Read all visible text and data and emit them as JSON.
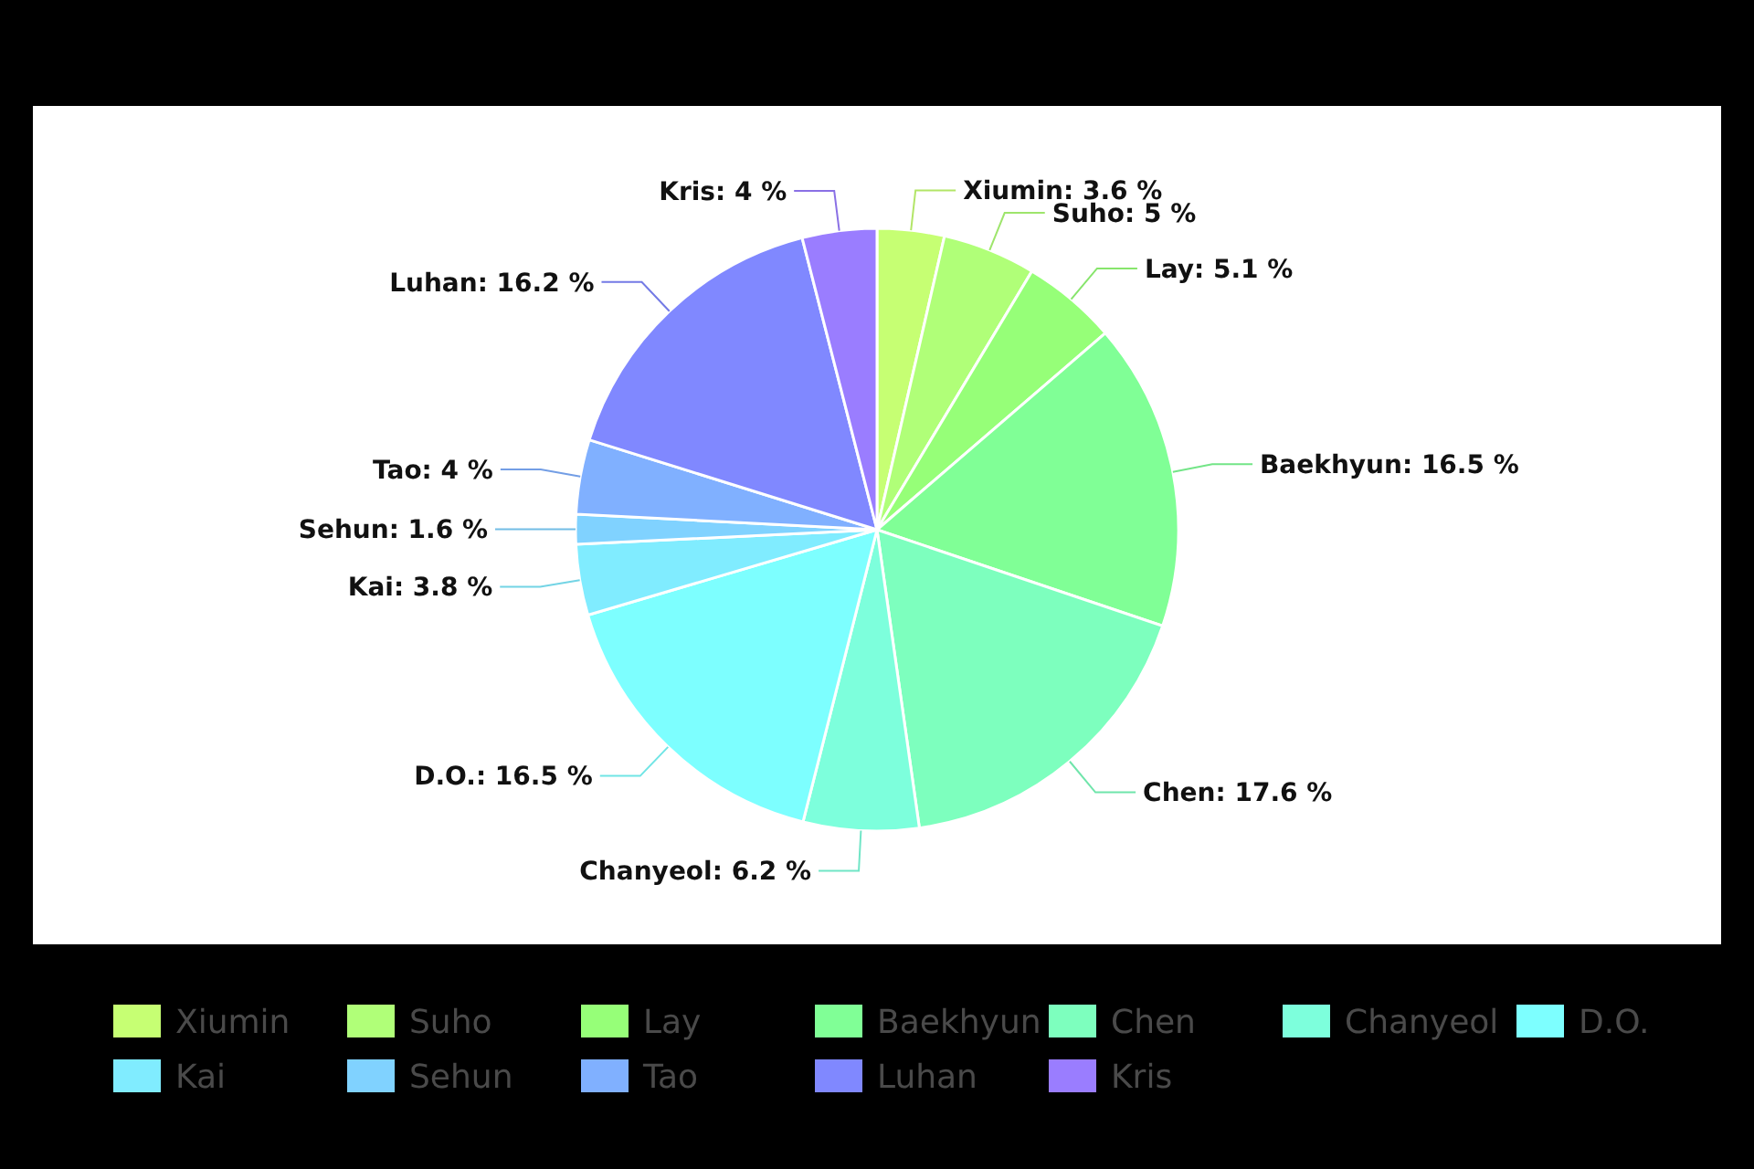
{
  "chart_data": {
    "type": "pie",
    "categories": [
      "Xiumin",
      "Suho",
      "Lay",
      "Baekhyun",
      "Chen",
      "Chanyeol",
      "D.O.",
      "Kai",
      "Sehun",
      "Tao",
      "Luhan",
      "Kris"
    ],
    "values": [
      3.6,
      5,
      5.1,
      16.5,
      17.6,
      6.2,
      16.5,
      3.8,
      1.6,
      4,
      16.2,
      4
    ],
    "colors": [
      "#c6ff73",
      "#b0ff78",
      "#96ff78",
      "#80ff96",
      "#7dffbe",
      "#7dffdc",
      "#7dffff",
      "#80ecff",
      "#80d2ff",
      "#80b0ff",
      "#8088ff",
      "#9a7dff"
    ],
    "value_labels": [
      "Xiumin: 3.6 %",
      "Suho: 5 %",
      "Lay: 5.1 %",
      "Baekhyun: 16.5 %",
      "Chen: 17.6 %",
      "Chanyeol: 6.2 %",
      "D.O.: 16.5 %",
      "Kai: 3.8 %",
      "Sehun: 1.6 %",
      "Tao: 4 %",
      "Luhan: 16.2 %",
      "Kris: 4 %"
    ],
    "legend": "bottom"
  }
}
